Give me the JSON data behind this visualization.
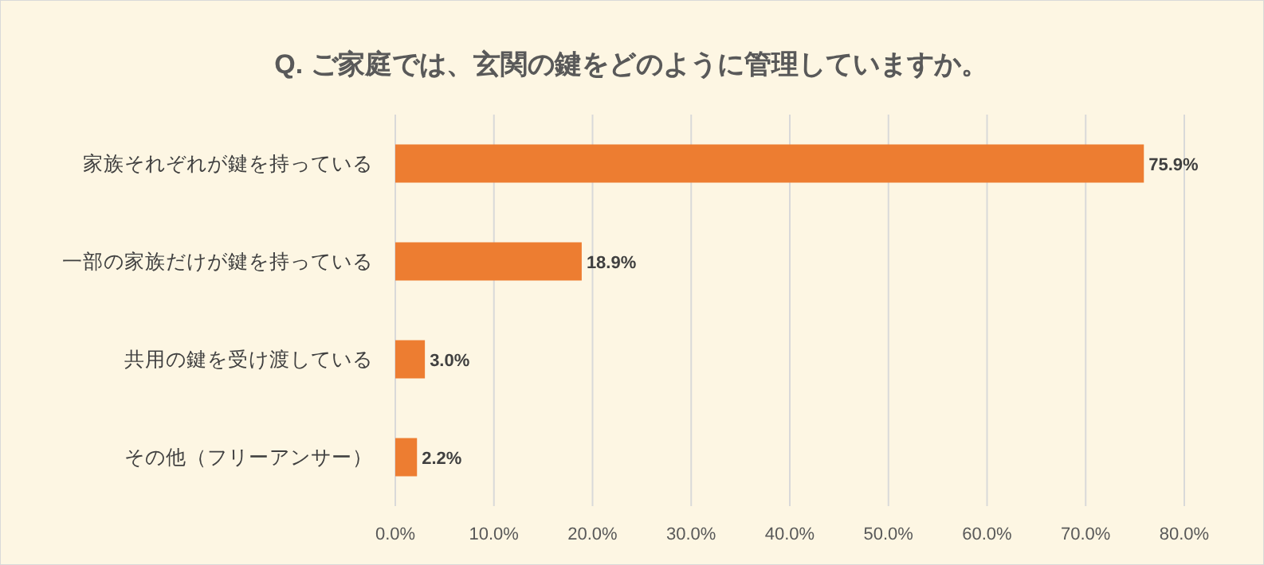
{
  "chart_data": {
    "type": "bar",
    "orientation": "horizontal",
    "title": "Q. ご家庭では、玄関の鍵をどのように管理していますか。",
    "categories": [
      "家族それぞれが鍵を持っている",
      "一部の家族だけが鍵を持っている",
      "共用の鍵を受け渡している",
      "その他（フリーアンサー）"
    ],
    "values": [
      75.9,
      18.9,
      3.0,
      2.2
    ],
    "value_labels": [
      "75.9%",
      "18.9%",
      "3.0%",
      "2.2%"
    ],
    "color": "#ed7d31",
    "xlim": [
      0,
      80
    ],
    "xticks": [
      {
        "value": 0,
        "label": "0.0%"
      },
      {
        "value": 10,
        "label": "10.0%"
      },
      {
        "value": 20,
        "label": "20.0%"
      },
      {
        "value": 30,
        "label": "30.0%"
      },
      {
        "value": 40,
        "label": "40.0%"
      },
      {
        "value": 50,
        "label": "50.0%"
      },
      {
        "value": 60,
        "label": "60.0%"
      },
      {
        "value": 70,
        "label": "70.0%"
      },
      {
        "value": 80,
        "label": "80.0%"
      }
    ],
    "grid": "x"
  }
}
